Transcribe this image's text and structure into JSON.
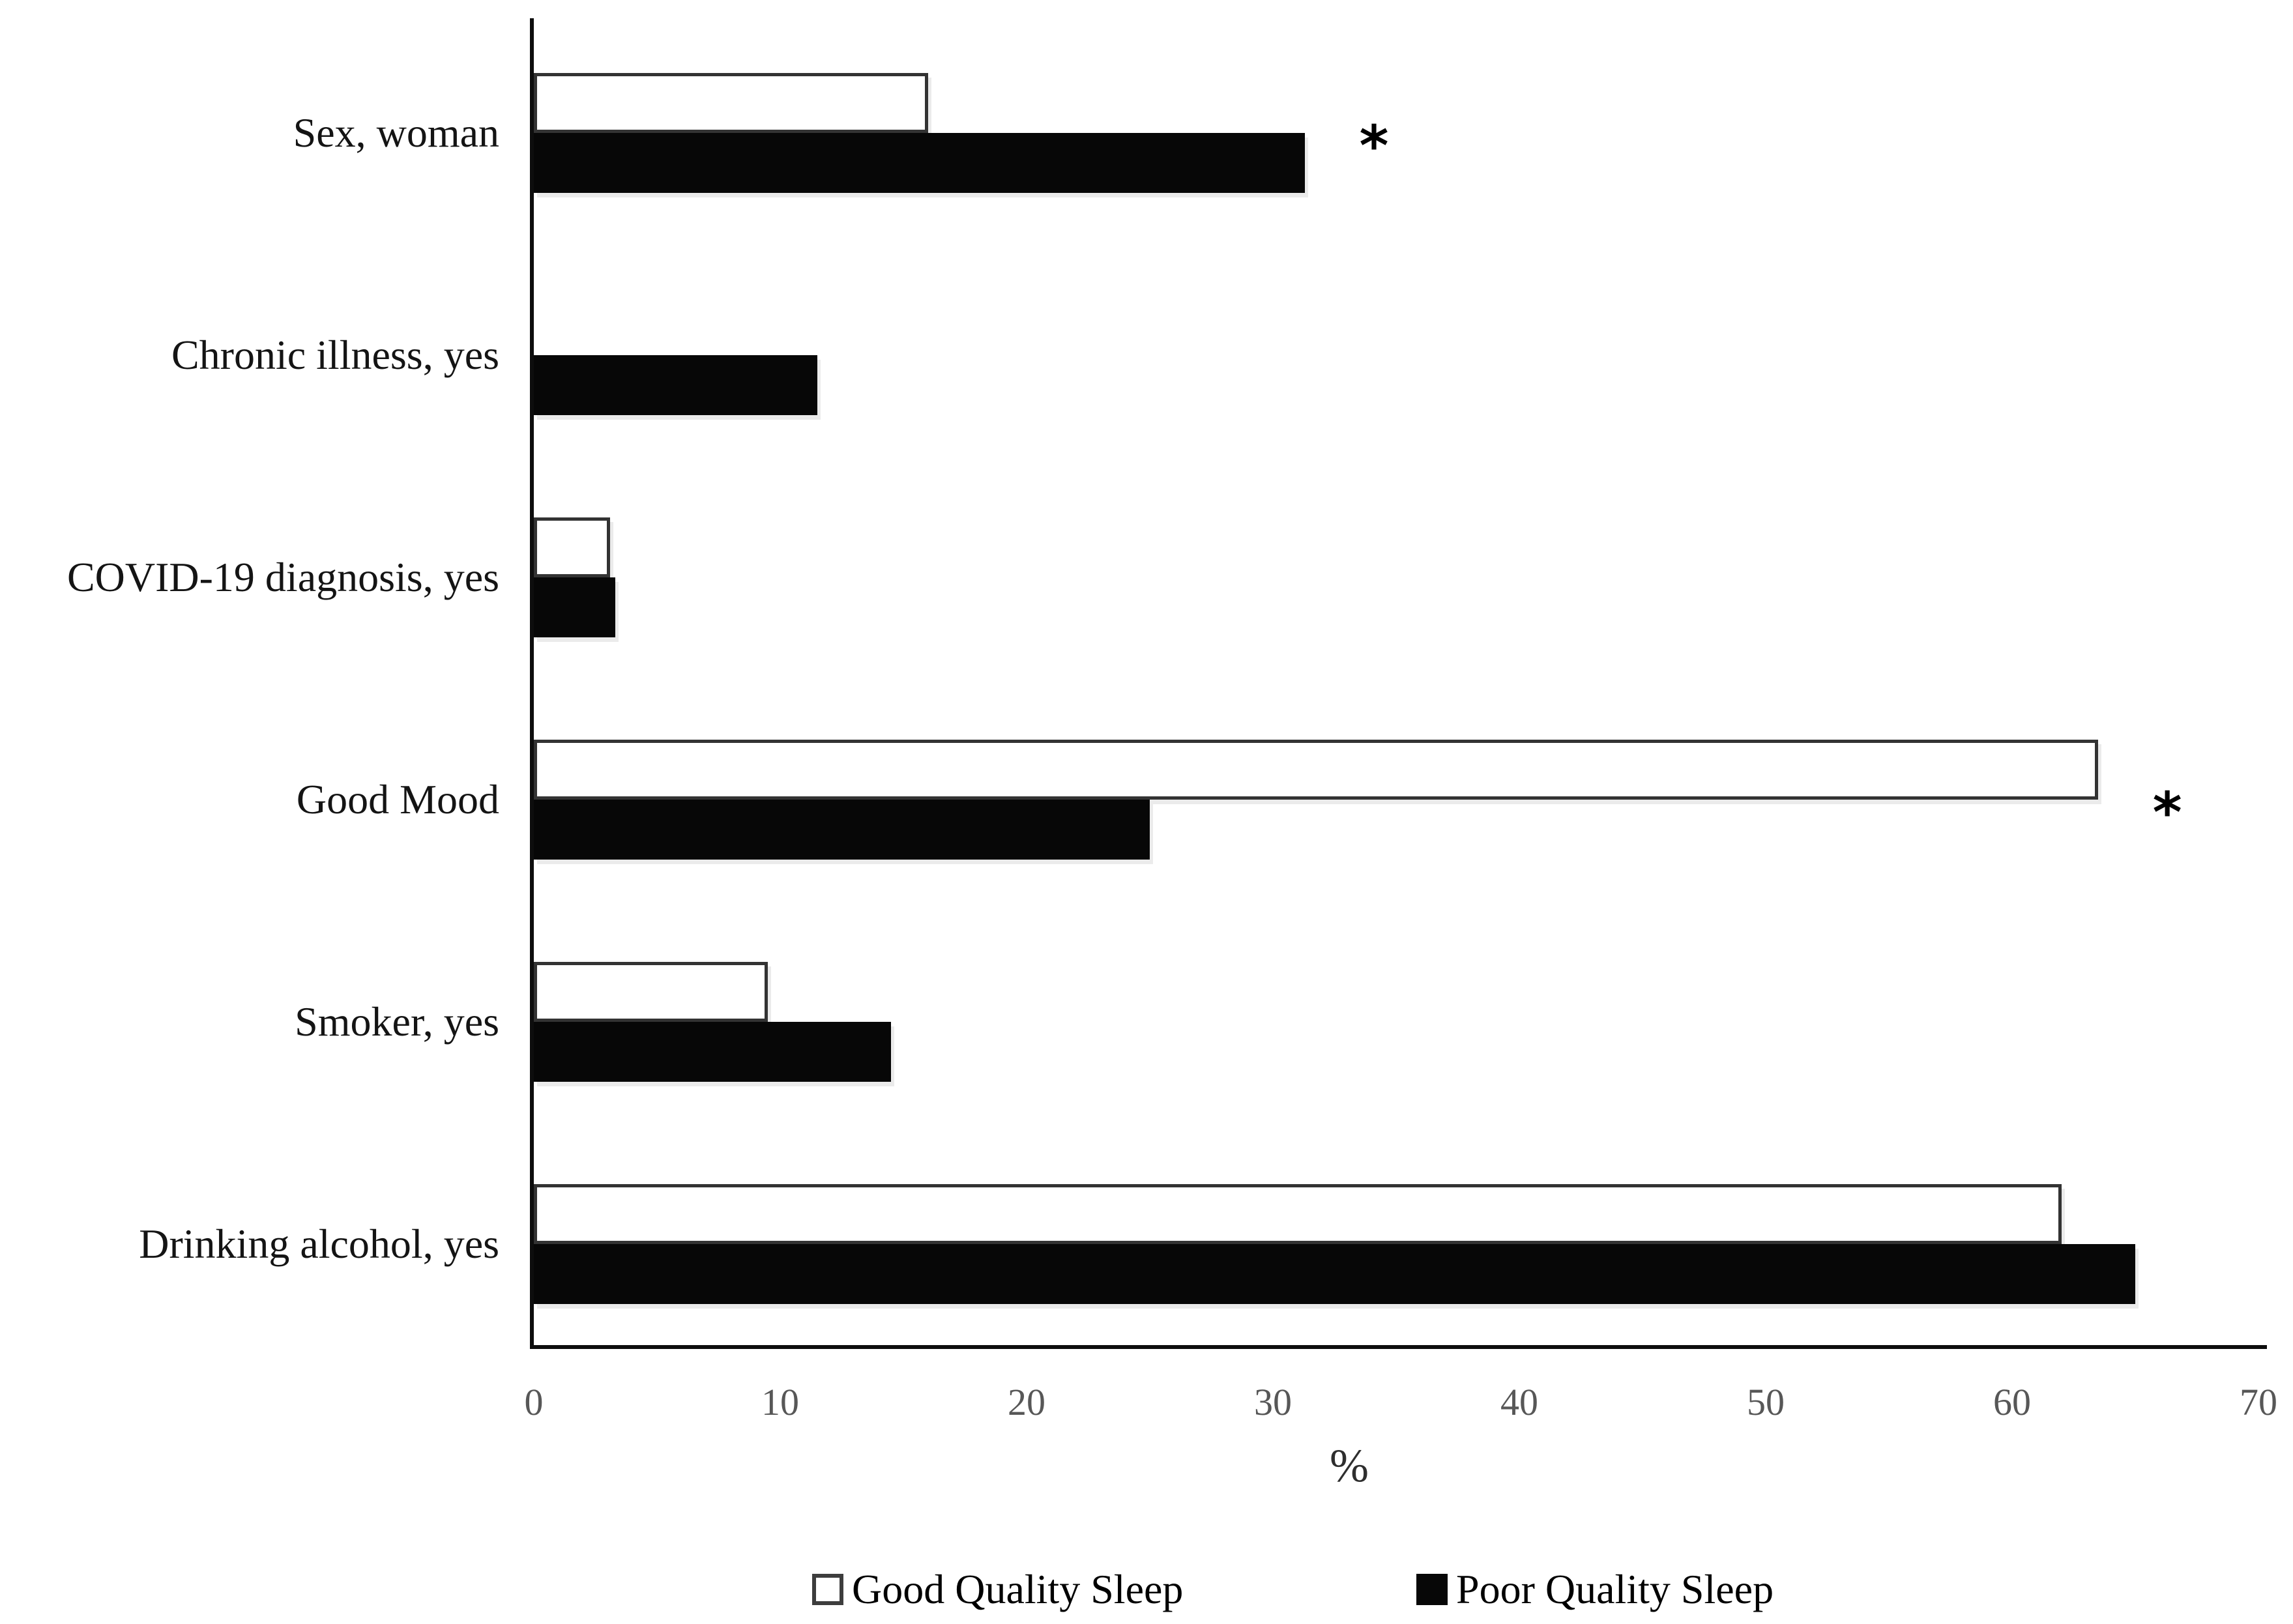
{
  "chart_data": {
    "type": "bar",
    "orientation": "horizontal",
    "xlabel": "%",
    "xlim": [
      0,
      70
    ],
    "x_ticks": [
      0,
      10,
      20,
      30,
      40,
      50,
      60,
      70
    ],
    "grid": false,
    "legend_position": "bottom",
    "categories": [
      "Sex, woman",
      "Chronic illness, yes",
      "COVID-19 diagnosis, yes",
      "Good Mood",
      "Smoker, yes",
      "Drinking alcohol, yes"
    ],
    "series": [
      {
        "name": "Good Quality Sleep",
        "fill": "#ffffff",
        "border": "#333333",
        "values": [
          16,
          0,
          3.1,
          63.5,
          9.5,
          62
        ]
      },
      {
        "name": "Poor Quality Sleep",
        "fill": "#070707",
        "border": "#070707",
        "values": [
          31.3,
          11.5,
          3.3,
          25,
          14.5,
          65
        ]
      }
    ],
    "significant": [
      true,
      false,
      false,
      true,
      false,
      false
    ],
    "significance_marker": "*"
  },
  "colors": {
    "background": "#ffffff",
    "axis": "#0d0d0d",
    "tick_text": "#575757",
    "category_text": "#141414",
    "xlabel_text": "#2e2e2e",
    "bar_good_fill": "#ffffff",
    "bar_good_border": "#333333",
    "bar_poor_fill": "#070707"
  }
}
